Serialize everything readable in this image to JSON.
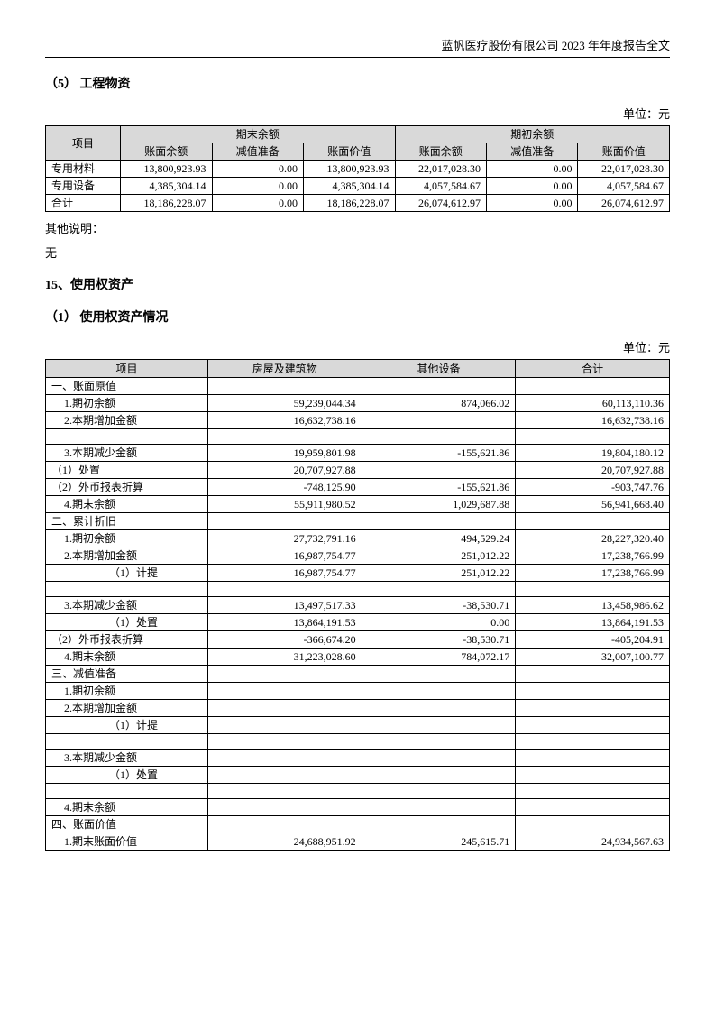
{
  "header": "蓝帆医疗股份有限公司 2023 年年度报告全文",
  "sec1_title": "（5） 工程物资",
  "unit": "单位：元",
  "table1": {
    "h_item": "项目",
    "h_end": "期末余额",
    "h_begin": "期初余额",
    "h_book_bal": "账面余额",
    "h_imp": "减值准备",
    "h_book_val": "账面价值",
    "rows": [
      {
        "item": "专用材料",
        "a": "13,800,923.93",
        "b": "0.00",
        "c": "13,800,923.93",
        "d": "22,017,028.30",
        "e": "0.00",
        "f": "22,017,028.30"
      },
      {
        "item": "专用设备",
        "a": "4,385,304.14",
        "b": "0.00",
        "c": "4,385,304.14",
        "d": "4,057,584.67",
        "e": "0.00",
        "f": "4,057,584.67"
      },
      {
        "item": "合计",
        "a": "18,186,228.07",
        "b": "0.00",
        "c": "18,186,228.07",
        "d": "26,074,612.97",
        "e": "0.00",
        "f": "26,074,612.97"
      }
    ]
  },
  "note_label": "其他说明：",
  "note_text": "无",
  "sec2_title": "15、使用权资产",
  "sec2_sub": "（1） 使用权资产情况",
  "table2": {
    "cols": [
      "项目",
      "房屋及建筑物",
      "其他设备",
      "合计"
    ],
    "rows": [
      {
        "label": "一、账面原值",
        "indent": 0,
        "a": "",
        "b": "",
        "c": ""
      },
      {
        "label": "1.期初余额",
        "indent": 1,
        "a": "59,239,044.34",
        "b": "874,066.02",
        "c": "60,113,110.36"
      },
      {
        "label": "2.本期增加金额",
        "indent": 1,
        "a": "16,632,738.16",
        "b": "",
        "c": "16,632,738.16"
      },
      {
        "label": "",
        "indent": 0,
        "a": "",
        "b": "",
        "c": ""
      },
      {
        "label": "3.本期减少金额",
        "indent": 1,
        "a": "19,959,801.98",
        "b": "-155,621.86",
        "c": "19,804,180.12"
      },
      {
        "label": "（1）处置",
        "indent": 0,
        "a": "20,707,927.88",
        "b": "",
        "c": "20,707,927.88"
      },
      {
        "label": "（2）外币报表折算",
        "indent": 0,
        "a": "-748,125.90",
        "b": "-155,621.86",
        "c": "-903,747.76"
      },
      {
        "label": "4.期末余额",
        "indent": 1,
        "a": "55,911,980.52",
        "b": "1,029,687.88",
        "c": "56,941,668.40"
      },
      {
        "label": "二、累计折旧",
        "indent": 0,
        "a": "",
        "b": "",
        "c": ""
      },
      {
        "label": "1.期初余额",
        "indent": 1,
        "a": "27,732,791.16",
        "b": "494,529.24",
        "c": "28,227,320.40"
      },
      {
        "label": "2.本期增加金额",
        "indent": 1,
        "a": "16,987,754.77",
        "b": "251,012.22",
        "c": "17,238,766.99"
      },
      {
        "label": "（1）计提",
        "indent": 3,
        "a": "16,987,754.77",
        "b": "251,012.22",
        "c": "17,238,766.99"
      },
      {
        "label": "",
        "indent": 0,
        "a": "",
        "b": "",
        "c": ""
      },
      {
        "label": "3.本期减少金额",
        "indent": 1,
        "a": "13,497,517.33",
        "b": "-38,530.71",
        "c": "13,458,986.62"
      },
      {
        "label": "（1）处置",
        "indent": 3,
        "a": "13,864,191.53",
        "b": "0.00",
        "c": "13,864,191.53"
      },
      {
        "label": "（2）外币报表折算",
        "indent": 0,
        "a": "-366,674.20",
        "b": "-38,530.71",
        "c": "-405,204.91"
      },
      {
        "label": "4.期末余额",
        "indent": 1,
        "a": "31,223,028.60",
        "b": "784,072.17",
        "c": "32,007,100.77"
      },
      {
        "label": "三、减值准备",
        "indent": 0,
        "a": "",
        "b": "",
        "c": ""
      },
      {
        "label": "1.期初余额",
        "indent": 1,
        "a": "",
        "b": "",
        "c": ""
      },
      {
        "label": "2.本期增加金额",
        "indent": 1,
        "a": "",
        "b": "",
        "c": ""
      },
      {
        "label": "（1）计提",
        "indent": 3,
        "a": "",
        "b": "",
        "c": ""
      },
      {
        "label": "",
        "indent": 0,
        "a": "",
        "b": "",
        "c": ""
      },
      {
        "label": "3.本期减少金额",
        "indent": 1,
        "a": "",
        "b": "",
        "c": ""
      },
      {
        "label": "（1）处置",
        "indent": 3,
        "a": "",
        "b": "",
        "c": ""
      },
      {
        "label": "",
        "indent": 0,
        "a": "",
        "b": "",
        "c": ""
      },
      {
        "label": "4.期末余额",
        "indent": 1,
        "a": "",
        "b": "",
        "c": ""
      },
      {
        "label": "四、账面价值",
        "indent": 0,
        "a": "",
        "b": "",
        "c": ""
      },
      {
        "label": "1.期末账面价值",
        "indent": 1,
        "a": "24,688,951.92",
        "b": "245,615.71",
        "c": "24,934,567.63"
      }
    ]
  }
}
